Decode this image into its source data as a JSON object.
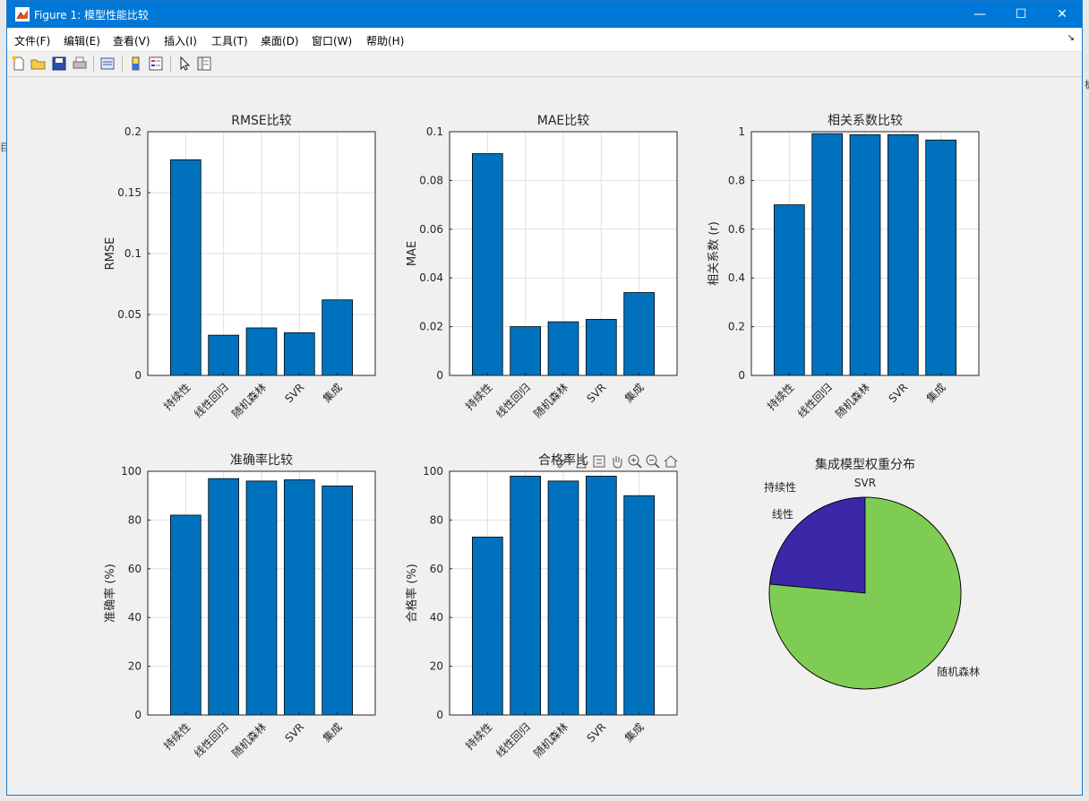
{
  "window": {
    "title": "Figure 1: 模型性能比较",
    "controls": {
      "minimize": "—",
      "maximize": "☐",
      "close": "✕"
    }
  },
  "menu": {
    "items": [
      "文件(F)",
      "编辑(E)",
      "查看(V)",
      "插入(I)",
      "工具(T)",
      "桌面(D)",
      "窗口(W)",
      "帮助(H)"
    ],
    "dock_glyph": "↘"
  },
  "toolbar": {
    "icons": [
      "new-figure-icon",
      "open-file-icon",
      "save-icon",
      "print-icon",
      "print-preview-icon",
      "colorbar-icon",
      "legend-icon",
      "pointer-icon",
      "property-inspector-icon"
    ]
  },
  "axes_toolbar": {
    "icons": [
      "brush-icon",
      "data-tips-icon",
      "restore-view-icon",
      "pan-icon",
      "zoom-in-icon",
      "zoom-out-icon",
      "home-icon"
    ]
  },
  "desktop_edge": {
    "left_char": "目",
    "right_char": "板"
  },
  "chart_data": [
    {
      "type": "bar",
      "title": "RMSE比较",
      "ylabel": "RMSE",
      "xlabel": "",
      "categories": [
        "持续性",
        "线性回归",
        "随机森林",
        "SVR",
        "集成"
      ],
      "values": [
        0.177,
        0.033,
        0.039,
        0.035,
        0.062
      ],
      "ylim": [
        0,
        0.2
      ],
      "yticks": [
        0,
        0.05,
        0.1,
        0.15,
        0.2
      ],
      "ytick_labels": [
        "0",
        "0.05",
        "0.1",
        "0.15",
        "0.2"
      ],
      "grid": true,
      "bar_color": "#0072bd"
    },
    {
      "type": "bar",
      "title": "MAE比较",
      "ylabel": "MAE",
      "xlabel": "",
      "categories": [
        "持续性",
        "线性回归",
        "随机森林",
        "SVR",
        "集成"
      ],
      "values": [
        0.091,
        0.02,
        0.022,
        0.023,
        0.034
      ],
      "ylim": [
        0,
        0.1
      ],
      "yticks": [
        0,
        0.02,
        0.04,
        0.06,
        0.08,
        0.1
      ],
      "ytick_labels": [
        "0",
        "0.02",
        "0.04",
        "0.06",
        "0.08",
        "0.1"
      ],
      "grid": true,
      "bar_color": "#0072bd"
    },
    {
      "type": "bar",
      "title": "相关系数比较",
      "ylabel": "相关系数 (r)",
      "xlabel": "",
      "categories": [
        "持续性",
        "线性回归",
        "随机森林",
        "SVR",
        "集成"
      ],
      "values": [
        0.7,
        0.992,
        0.988,
        0.988,
        0.966
      ],
      "ylim": [
        0,
        1
      ],
      "yticks": [
        0,
        0.2,
        0.4,
        0.6,
        0.8,
        1
      ],
      "ytick_labels": [
        "0",
        "0.2",
        "0.4",
        "0.6",
        "0.8",
        "1"
      ],
      "grid": true,
      "bar_color": "#0072bd"
    },
    {
      "type": "bar",
      "title": "准确率比较",
      "ylabel": "准确率 (%)",
      "xlabel": "",
      "categories": [
        "持续性",
        "线性回归",
        "随机森林",
        "SVR",
        "集成"
      ],
      "values": [
        82,
        97,
        96,
        96.5,
        94
      ],
      "ylim": [
        0,
        100
      ],
      "yticks": [
        0,
        20,
        40,
        60,
        80,
        100
      ],
      "ytick_labels": [
        "0",
        "20",
        "40",
        "60",
        "80",
        "100"
      ],
      "grid": true,
      "bar_color": "#0072bd"
    },
    {
      "type": "bar",
      "title": "合格率比",
      "ylabel": "合格率 (%)",
      "xlabel": "",
      "categories": [
        "持续性",
        "线性回归",
        "随机森林",
        "SVR",
        "集成"
      ],
      "values": [
        73,
        98,
        96,
        98,
        90
      ],
      "ylim": [
        0,
        100
      ],
      "yticks": [
        0,
        20,
        40,
        60,
        80,
        100
      ],
      "ytick_labels": [
        "0",
        "20",
        "40",
        "60",
        "80",
        "100"
      ],
      "grid": true,
      "bar_color": "#0072bd"
    },
    {
      "type": "pie",
      "title": "集成模型权重分布",
      "slices": [
        {
          "label": "SVR",
          "value": 0.0,
          "color": "#fde725"
        },
        {
          "label": "持续性",
          "value": 0.0,
          "color": "#440154"
        },
        {
          "label": "线性",
          "value": 0.235,
          "color": "#3b28a8"
        },
        {
          "label": "随机森林",
          "value": 0.765,
          "color": "#7fcc55"
        }
      ]
    }
  ]
}
